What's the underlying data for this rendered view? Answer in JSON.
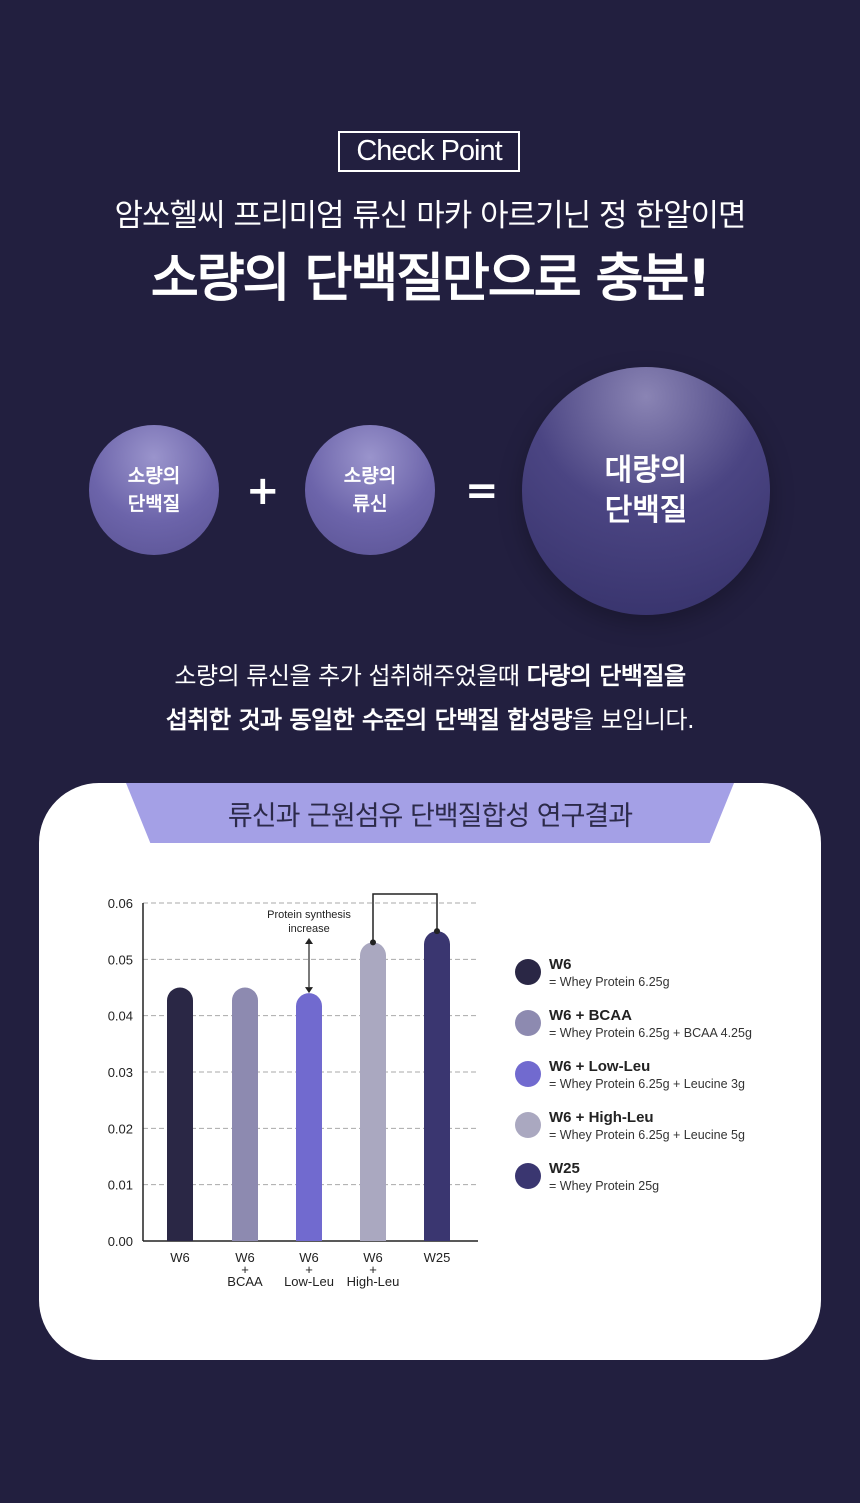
{
  "header": {
    "badge": "Check Point",
    "line1": "암쏘헬씨 프리미엄 류신 마카 아르기닌 정 한알이면",
    "line2": "소량의 단백질만으로 충분!"
  },
  "equation": {
    "left": "소량의\n단백질",
    "plus": "+",
    "middle": "소량의\n류신",
    "equals": "=",
    "result": "대량의\n단백질"
  },
  "description": {
    "line1_normal": "소량의 류신을 추가 섭취해주었을때 ",
    "line1_bold": "다량의 단백질을",
    "line2_bold1": "섭취한  것과 동일한 수준의 단백질 합성량",
    "line2_normal": "을 보입니다."
  },
  "card": {
    "title": "류신과 근원섬유 단백질합성 연구결과"
  },
  "chart_data": {
    "type": "bar",
    "categories": [
      "W6",
      "W6 + BCAA",
      "W6 + Low-Leu",
      "W6 + High-Leu",
      "W25"
    ],
    "category_labels": [
      [
        "W6"
      ],
      [
        "W6",
        "+",
        "BCAA"
      ],
      [
        "W6",
        "+",
        "Low-Leu"
      ],
      [
        "W6",
        "+",
        "High-Leu"
      ],
      [
        "W25"
      ]
    ],
    "values": [
      0.045,
      0.045,
      0.044,
      0.053,
      0.055
    ],
    "colors": [
      "#2a2745",
      "#8d8ab0",
      "#716acf",
      "#aaa8c0",
      "#3a3670"
    ],
    "ylim": [
      0,
      0.06
    ],
    "yticks": [
      "0.00",
      "0.01",
      "0.02",
      "0.03",
      "0.04",
      "0.05",
      "0.06"
    ],
    "grid": true,
    "annotation": "Protein synthesis\nincrease",
    "legend": [
      {
        "name": "W6",
        "desc": "= Whey Protein 6.25g"
      },
      {
        "name": "W6 + BCAA",
        "desc": "= Whey Protein 6.25g + BCAA 4.25g"
      },
      {
        "name": "W6 + Low-Leu",
        "desc": "= Whey Protein 6.25g + Leucine 3g"
      },
      {
        "name": "W6 + High-Leu",
        "desc": "= Whey Protein 6.25g + Leucine 5g"
      },
      {
        "name": "W25",
        "desc": "= Whey Protein 25g"
      }
    ],
    "legend_position": "right"
  }
}
